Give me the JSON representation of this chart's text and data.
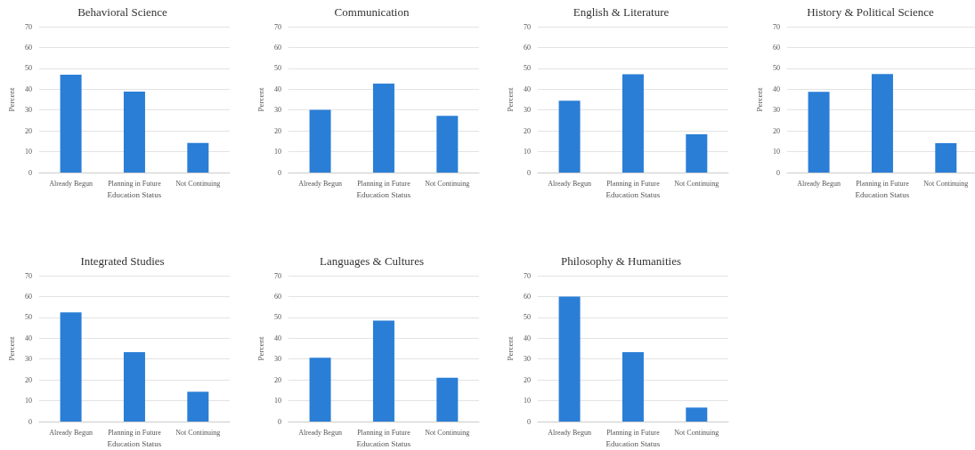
{
  "chart_data": [
    {
      "type": "bar",
      "title": "Behavioral Science",
      "xlabel": "Education Status",
      "ylabel": "Percent",
      "categories": [
        "Already Begun",
        "Planning in Future",
        "Not Continuing"
      ],
      "values": [
        47,
        38.8,
        14.2
      ],
      "color": "#2a7ed6",
      "ylim": [
        0,
        70
      ],
      "yticks": [
        0,
        10,
        20,
        30,
        40,
        50,
        60,
        70
      ],
      "grid": "y"
    },
    {
      "type": "bar",
      "title": "Communication",
      "xlabel": "Education Status",
      "ylabel": "Percent",
      "categories": [
        "Already Begun",
        "Planning in Future",
        "Not Continuing"
      ],
      "values": [
        30.1,
        42.7,
        27.2
      ],
      "color": "#2a7ed6",
      "ylim": [
        0,
        70
      ],
      "yticks": [
        0,
        10,
        20,
        30,
        40,
        50,
        60,
        70
      ],
      "grid": "y"
    },
    {
      "type": "bar",
      "title": "English & Literature",
      "xlabel": "Education Status",
      "ylabel": "Percent",
      "categories": [
        "Already Begun",
        "Planning in Future",
        "Not Continuing"
      ],
      "values": [
        34.5,
        47.2,
        18.4
      ],
      "color": "#2a7ed6",
      "ylim": [
        0,
        70
      ],
      "yticks": [
        0,
        10,
        20,
        30,
        40,
        50,
        60,
        70
      ],
      "grid": "y"
    },
    {
      "type": "bar",
      "title": "History & Political Science",
      "xlabel": "Education Status",
      "ylabel": "Percent",
      "categories": [
        "Already Begun",
        "Planning in Future",
        "Not Continuing"
      ],
      "values": [
        38.7,
        47.3,
        14.1
      ],
      "color": "#2a7ed6",
      "ylim": [
        0,
        70
      ],
      "yticks": [
        0,
        10,
        20,
        30,
        40,
        50,
        60,
        70
      ],
      "grid": "y"
    },
    {
      "type": "bar",
      "title": "Integrated Studies",
      "xlabel": "Education Status",
      "ylabel": "Percent",
      "categories": [
        "Already Begun",
        "Planning in Future",
        "Not Continuing"
      ],
      "values": [
        52.4,
        33.3,
        14.3
      ],
      "color": "#2a7ed6",
      "ylim": [
        0,
        70
      ],
      "yticks": [
        0,
        10,
        20,
        30,
        40,
        50,
        60,
        70
      ],
      "grid": "y"
    },
    {
      "type": "bar",
      "title": "Languages & Cultures",
      "xlabel": "Education Status",
      "ylabel": "Percent",
      "categories": [
        "Already Begun",
        "Planning in Future",
        "Not Continuing"
      ],
      "values": [
        30.6,
        48.4,
        21
      ],
      "color": "#2a7ed6",
      "ylim": [
        0,
        70
      ],
      "yticks": [
        0,
        10,
        20,
        30,
        40,
        50,
        60,
        70
      ],
      "grid": "y"
    },
    {
      "type": "bar",
      "title": "Philosophy & Humanities",
      "xlabel": "Education Status",
      "ylabel": "Percent",
      "categories": [
        "Already Begun",
        "Planning in Future",
        "Not Continuing"
      ],
      "values": [
        60,
        33.3,
        6.7
      ],
      "color": "#2a7ed6",
      "ylim": [
        0,
        70
      ],
      "yticks": [
        0,
        10,
        20,
        30,
        40,
        50,
        60,
        70
      ],
      "grid": "y"
    }
  ]
}
